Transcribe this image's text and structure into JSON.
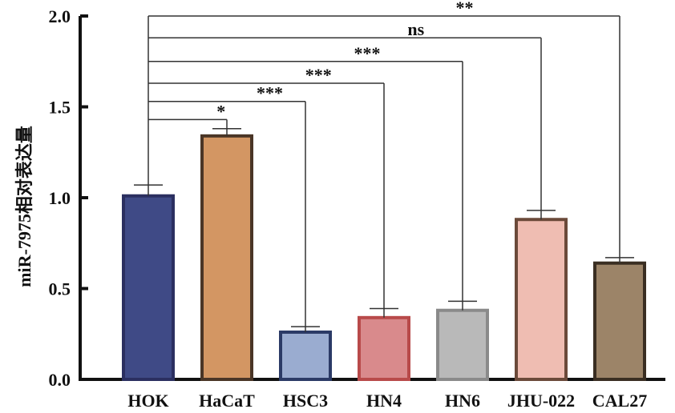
{
  "chart_data": {
    "type": "bar",
    "ylabel": "miR-7975相对表达量",
    "ylim": [
      0,
      2.0
    ],
    "yticks": [
      "0.0",
      "0.5",
      "1.0",
      "1.5",
      "2.0"
    ],
    "categories": [
      "HOK",
      "HaCaT",
      "HSC3",
      "HN4",
      "HN6",
      "JHU-022",
      "CAL27"
    ],
    "values": [
      1.01,
      1.34,
      0.26,
      0.34,
      0.38,
      0.88,
      0.64
    ],
    "errors": [
      0.06,
      0.04,
      0.03,
      0.05,
      0.05,
      0.05,
      0.03
    ],
    "colors": [
      "#3f4a86",
      "#d39663",
      "#9aacd0",
      "#d98a8c",
      "#b9b9b9",
      "#efbdb2",
      "#9c8468"
    ],
    "borders": [
      "#2b2f60",
      "#4a3526",
      "#2b3a66",
      "#b84a4a",
      "#8a8a8a",
      "#6b4a3a",
      "#3a2e22"
    ],
    "comparisons": [
      {
        "to": "HaCaT",
        "label": "*",
        "y": 1.43
      },
      {
        "to": "HSC3",
        "label": "***",
        "y": 1.53
      },
      {
        "to": "HN4",
        "label": "***",
        "y": 1.63
      },
      {
        "to": "HN6",
        "label": "***",
        "y": 1.75
      },
      {
        "to": "JHU-022",
        "label": "ns",
        "y": 1.88
      },
      {
        "to": "CAL27",
        "label": "**",
        "y": 2.0
      }
    ],
    "grid": false
  }
}
